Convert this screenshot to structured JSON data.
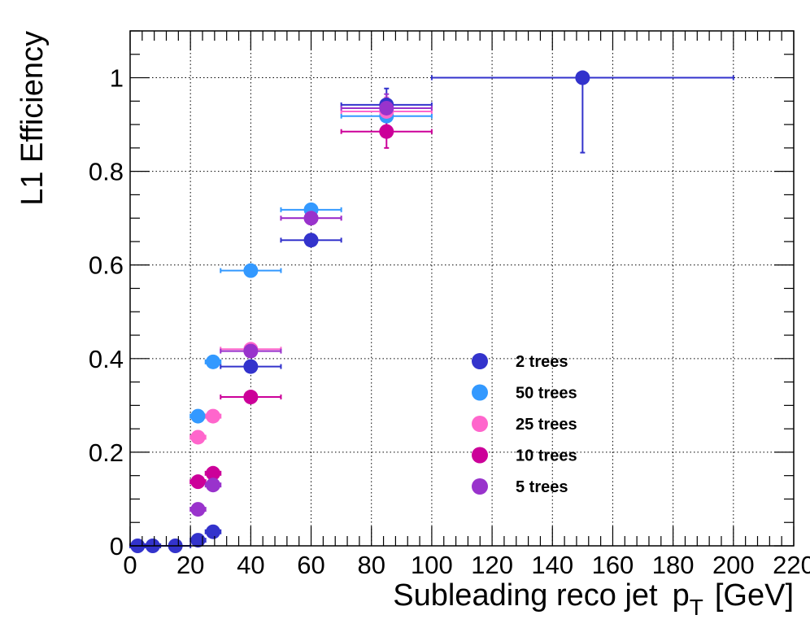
{
  "chart_data": {
    "type": "scatter",
    "xlabel": "Subleading reco jet",
    "xlabel_var": "p",
    "xlabel_sub": "T",
    "xlabel_unit": "[GeV]",
    "ylabel": "L1 Efficiency",
    "xlim": [
      0,
      220
    ],
    "ylim": [
      0,
      1.1
    ],
    "x_ticks": [
      0,
      20,
      40,
      60,
      80,
      100,
      120,
      140,
      160,
      180,
      200,
      220
    ],
    "y_ticks": [
      0,
      0.2,
      0.4,
      0.6,
      0.8,
      1
    ],
    "x_tick_labels": [
      "0",
      "20",
      "40",
      "60",
      "80",
      "100",
      "120",
      "140",
      "160",
      "180",
      "200",
      "220"
    ],
    "y_tick_labels": [
      "0",
      "0.2",
      "0.4",
      "0.6",
      "0.8",
      "1"
    ],
    "grid": true,
    "legend_position": "lower-right",
    "series": [
      {
        "name": "2 trees",
        "color": "#3333cc",
        "points": [
          {
            "x": 2.5,
            "y": 0.0,
            "xerr": 2.5,
            "yerr": 0.0
          },
          {
            "x": 7.5,
            "y": 0.0,
            "xerr": 2.5,
            "yerr": 0.0
          },
          {
            "x": 15,
            "y": 0.0,
            "xerr": 5,
            "yerr": 0.0
          },
          {
            "x": 22.5,
            "y": 0.012,
            "xerr": 2.5,
            "yerr": 0.003
          },
          {
            "x": 27.5,
            "y": 0.03,
            "xerr": 2.5,
            "yerr": 0.005
          },
          {
            "x": 40,
            "y": 0.383,
            "xerr": 10,
            "yerr": 0.01
          },
          {
            "x": 60,
            "y": 0.653,
            "xerr": 10,
            "yerr": 0.01
          },
          {
            "x": 85,
            "y": 0.942,
            "xerr": 15,
            "yerr": 0.035
          },
          {
            "x": 150,
            "y": 1.0,
            "xerr": 50,
            "yerr_low": 0.16,
            "yerr_high": 0.0
          }
        ]
      },
      {
        "name": "50 trees",
        "color": "#3399ff",
        "points": [
          {
            "x": 22.5,
            "y": 0.277,
            "xerr": 2.5,
            "yerr": 0.008
          },
          {
            "x": 27.5,
            "y": 0.393,
            "xerr": 2.5,
            "yerr": 0.008
          },
          {
            "x": 40,
            "y": 0.588,
            "xerr": 10,
            "yerr": 0.01
          },
          {
            "x": 60,
            "y": 0.718,
            "xerr": 10,
            "yerr": 0.01
          },
          {
            "x": 85,
            "y": 0.918,
            "xerr": 15,
            "yerr": 0.03
          }
        ]
      },
      {
        "name": "25 trees",
        "color": "#ff66cc",
        "points": [
          {
            "x": 22.5,
            "y": 0.232,
            "xerr": 2.5,
            "yerr": 0.008
          },
          {
            "x": 27.5,
            "y": 0.277,
            "xerr": 2.5,
            "yerr": 0.008
          },
          {
            "x": 40,
            "y": 0.42,
            "xerr": 10,
            "yerr": 0.01
          },
          {
            "x": 60,
            "y": 0.7,
            "xerr": 10,
            "yerr": 0.01
          },
          {
            "x": 85,
            "y": 0.928,
            "xerr": 15,
            "yerr": 0.03
          }
        ]
      },
      {
        "name": "10 trees",
        "color": "#cc0099",
        "points": [
          {
            "x": 22.5,
            "y": 0.137,
            "xerr": 2.5,
            "yerr": 0.006
          },
          {
            "x": 27.5,
            "y": 0.155,
            "xerr": 2.5,
            "yerr": 0.006
          },
          {
            "x": 40,
            "y": 0.318,
            "xerr": 10,
            "yerr": 0.01
          },
          {
            "x": 85,
            "y": 0.885,
            "xerr": 15,
            "yerr": 0.035
          }
        ]
      },
      {
        "name": "5 trees",
        "color": "#9933cc",
        "points": [
          {
            "x": 22.5,
            "y": 0.078,
            "xerr": 2.5,
            "yerr": 0.005
          },
          {
            "x": 27.5,
            "y": 0.13,
            "xerr": 2.5,
            "yerr": 0.006
          },
          {
            "x": 40,
            "y": 0.416,
            "xerr": 10,
            "yerr": 0.01
          },
          {
            "x": 60,
            "y": 0.7,
            "xerr": 10,
            "yerr": 0.01
          },
          {
            "x": 85,
            "y": 0.935,
            "xerr": 15,
            "yerr": 0.03
          }
        ]
      }
    ],
    "legend_order": [
      "2 trees",
      "50 trees",
      "25 trees",
      "10 trees",
      "5 trees"
    ]
  }
}
